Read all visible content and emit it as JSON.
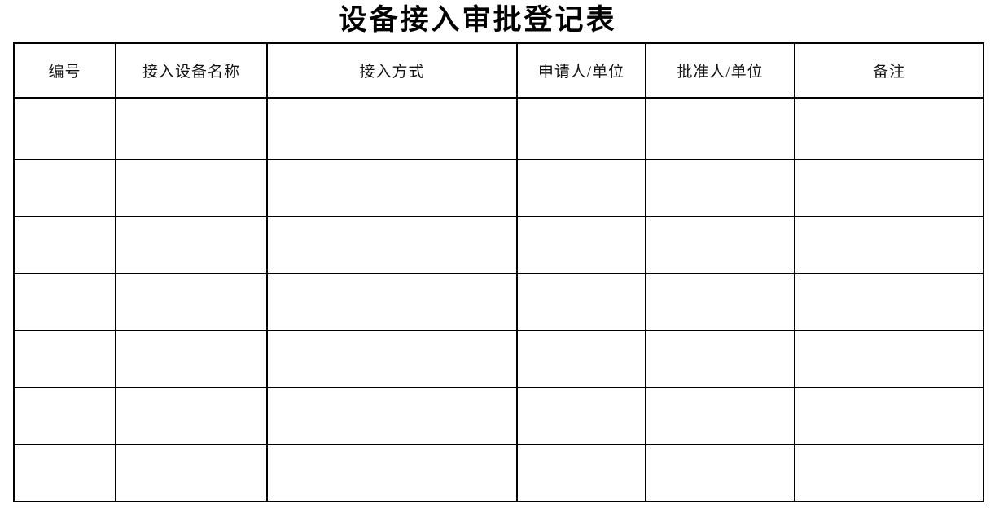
{
  "document": {
    "title": "设备接入审批登记表"
  },
  "table": {
    "columns": [
      {
        "key": "number",
        "label": "编号"
      },
      {
        "key": "device-name",
        "label": "接入设备名称"
      },
      {
        "key": "access-method",
        "label": "接入方式"
      },
      {
        "key": "applicant-unit",
        "label": "申请人/单位"
      },
      {
        "key": "approver-unit",
        "label": "批准人/单位"
      },
      {
        "key": "remarks",
        "label": "备注"
      }
    ],
    "rows": [
      [
        "",
        "",
        "",
        "",
        "",
        ""
      ],
      [
        "",
        "",
        "",
        "",
        "",
        ""
      ],
      [
        "",
        "",
        "",
        "",
        "",
        ""
      ],
      [
        "",
        "",
        "",
        "",
        "",
        ""
      ],
      [
        "",
        "",
        "",
        "",
        "",
        ""
      ],
      [
        "",
        "",
        "",
        "",
        "",
        ""
      ],
      [
        "",
        "",
        "",
        "",
        "",
        ""
      ]
    ]
  }
}
